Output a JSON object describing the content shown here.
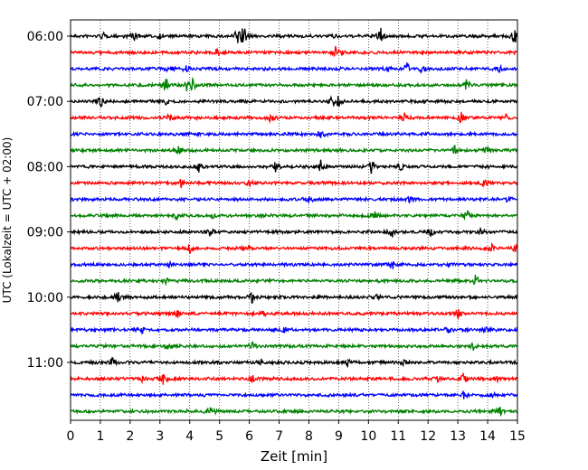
{
  "chart_data": {
    "type": "line",
    "title": "",
    "xlabel": "Zeit  [min]",
    "ylabel": "UTC (Lokalzeit = UTC + 02:00)",
    "xlim": [
      0,
      15
    ],
    "x_ticks": [
      0,
      1,
      2,
      3,
      4,
      5,
      6,
      7,
      8,
      9,
      10,
      11,
      12,
      13,
      14,
      15
    ],
    "y_ticks": [
      "06:00",
      "07:00",
      "08:00",
      "09:00",
      "10:00",
      "11:00"
    ],
    "grid": "vertical dotted",
    "colors": [
      "#000000",
      "#ff0000",
      "#0000ff",
      "#008000"
    ],
    "series": [
      {
        "start": "06:00",
        "color": "#000000",
        "events": [
          {
            "x": 1.1,
            "a": 0.3
          },
          {
            "x": 2.1,
            "a": 0.6
          },
          {
            "x": 3.0,
            "a": 0.2
          },
          {
            "x": 5.6,
            "a": 1.0
          },
          {
            "x": 5.8,
            "a": 1.3
          },
          {
            "x": 8.9,
            "a": 0.3
          },
          {
            "x": 10.4,
            "a": 0.9
          },
          {
            "x": 14.9,
            "a": 0.8
          }
        ]
      },
      {
        "start": "06:15",
        "color": "#ff0000",
        "events": [
          {
            "x": 4.9,
            "a": 0.3
          },
          {
            "x": 8.9,
            "a": 0.6
          },
          {
            "x": 9.1,
            "a": 0.4
          }
        ]
      },
      {
        "start": "06:30",
        "color": "#0000ff",
        "events": [
          {
            "x": 3.3,
            "a": 0.5
          },
          {
            "x": 3.9,
            "a": 0.7
          },
          {
            "x": 10.6,
            "a": 0.3
          },
          {
            "x": 11.3,
            "a": 0.6
          },
          {
            "x": 11.8,
            "a": 0.4
          },
          {
            "x": 14.4,
            "a": 0.3
          }
        ]
      },
      {
        "start": "06:45",
        "color": "#008000",
        "events": [
          {
            "x": 3.2,
            "a": 0.8
          },
          {
            "x": 3.9,
            "a": 0.5
          },
          {
            "x": 4.1,
            "a": 0.7
          },
          {
            "x": 13.3,
            "a": 0.6
          }
        ]
      },
      {
        "start": "07:00",
        "color": "#000000",
        "events": [
          {
            "x": 1.0,
            "a": 0.6
          },
          {
            "x": 3.2,
            "a": 0.3
          },
          {
            "x": 8.8,
            "a": 0.8
          },
          {
            "x": 9.0,
            "a": 0.6
          }
        ]
      },
      {
        "start": "07:15",
        "color": "#ff0000",
        "events": [
          {
            "x": 3.3,
            "a": 0.6
          },
          {
            "x": 6.7,
            "a": 0.5
          },
          {
            "x": 11.2,
            "a": 0.4
          },
          {
            "x": 13.1,
            "a": 0.6
          },
          {
            "x": 14.6,
            "a": 0.4
          }
        ]
      },
      {
        "start": "07:30",
        "color": "#0000ff",
        "events": [
          {
            "x": 8.4,
            "a": 0.6
          }
        ]
      },
      {
        "start": "07:45",
        "color": "#008000",
        "events": [
          {
            "x": 3.6,
            "a": 0.5
          },
          {
            "x": 12.9,
            "a": 0.4
          },
          {
            "x": 14.0,
            "a": 0.4
          }
        ]
      },
      {
        "start": "08:00",
        "color": "#000000",
        "events": [
          {
            "x": 4.3,
            "a": 0.5
          },
          {
            "x": 6.9,
            "a": 0.6
          },
          {
            "x": 8.4,
            "a": 0.6
          },
          {
            "x": 10.1,
            "a": 0.7
          },
          {
            "x": 11.1,
            "a": 0.4
          }
        ]
      },
      {
        "start": "08:15",
        "color": "#ff0000",
        "events": [
          {
            "x": 3.7,
            "a": 0.4
          },
          {
            "x": 6.0,
            "a": 0.4
          },
          {
            "x": 13.9,
            "a": 0.5
          }
        ]
      },
      {
        "start": "08:30",
        "color": "#0000ff",
        "events": [
          {
            "x": 8.0,
            "a": 0.6
          },
          {
            "x": 11.4,
            "a": 0.3
          },
          {
            "x": 14.7,
            "a": 0.3
          }
        ]
      },
      {
        "start": "08:45",
        "color": "#008000",
        "events": [
          {
            "x": 3.6,
            "a": 0.7
          },
          {
            "x": 4.8,
            "a": 0.3
          },
          {
            "x": 10.2,
            "a": 0.4
          },
          {
            "x": 13.3,
            "a": 0.6
          }
        ]
      },
      {
        "start": "09:00",
        "color": "#000000",
        "events": [
          {
            "x": 4.7,
            "a": 0.5
          },
          {
            "x": 10.8,
            "a": 0.6
          },
          {
            "x": 12.1,
            "a": 0.4
          },
          {
            "x": 13.8,
            "a": 0.4
          }
        ]
      },
      {
        "start": "09:15",
        "color": "#ff0000",
        "events": [
          {
            "x": 4.0,
            "a": 0.5
          },
          {
            "x": 5.9,
            "a": 0.3
          },
          {
            "x": 14.1,
            "a": 0.6
          },
          {
            "x": 14.9,
            "a": 0.4
          }
        ]
      },
      {
        "start": "09:30",
        "color": "#0000ff",
        "events": [
          {
            "x": 3.3,
            "a": 0.3
          },
          {
            "x": 10.8,
            "a": 0.5
          },
          {
            "x": 12.7,
            "a": 0.3
          }
        ]
      },
      {
        "start": "09:45",
        "color": "#008000",
        "events": [
          {
            "x": 3.2,
            "a": 0.3
          },
          {
            "x": 13.6,
            "a": 0.6
          }
        ]
      },
      {
        "start": "10:00",
        "color": "#000000",
        "events": [
          {
            "x": 1.6,
            "a": 0.7
          },
          {
            "x": 6.1,
            "a": 0.6
          },
          {
            "x": 10.3,
            "a": 0.3
          }
        ]
      },
      {
        "start": "10:15",
        "color": "#ff0000",
        "events": [
          {
            "x": 3.6,
            "a": 0.4
          },
          {
            "x": 6.5,
            "a": 0.3
          },
          {
            "x": 13.0,
            "a": 0.5
          }
        ]
      },
      {
        "start": "10:30",
        "color": "#0000ff",
        "events": [
          {
            "x": 2.4,
            "a": 0.3
          },
          {
            "x": 7.2,
            "a": 0.3
          },
          {
            "x": 12.7,
            "a": 0.5
          },
          {
            "x": 14.0,
            "a": 0.3
          }
        ]
      },
      {
        "start": "10:45",
        "color": "#008000",
        "events": [
          {
            "x": 3.3,
            "a": 0.5
          },
          {
            "x": 6.1,
            "a": 0.4
          },
          {
            "x": 13.5,
            "a": 0.5
          }
        ]
      },
      {
        "start": "11:00",
        "color": "#000000",
        "events": [
          {
            "x": 1.4,
            "a": 0.5
          },
          {
            "x": 6.4,
            "a": 0.3
          },
          {
            "x": 9.3,
            "a": 0.4
          },
          {
            "x": 11.2,
            "a": 0.3
          }
        ]
      },
      {
        "start": "11:15",
        "color": "#ff0000",
        "events": [
          {
            "x": 2.4,
            "a": 0.4
          },
          {
            "x": 3.1,
            "a": 0.6
          },
          {
            "x": 6.1,
            "a": 0.4
          },
          {
            "x": 12.3,
            "a": 0.4
          },
          {
            "x": 13.2,
            "a": 0.5
          },
          {
            "x": 14.3,
            "a": 0.5
          }
        ]
      },
      {
        "start": "11:30",
        "color": "#0000ff",
        "events": [
          {
            "x": 13.2,
            "a": 0.4
          },
          {
            "x": 14.2,
            "a": 0.3
          }
        ]
      },
      {
        "start": "11:45",
        "color": "#008000",
        "events": [
          {
            "x": 4.7,
            "a": 0.6
          },
          {
            "x": 14.4,
            "a": 0.5
          }
        ]
      }
    ]
  }
}
